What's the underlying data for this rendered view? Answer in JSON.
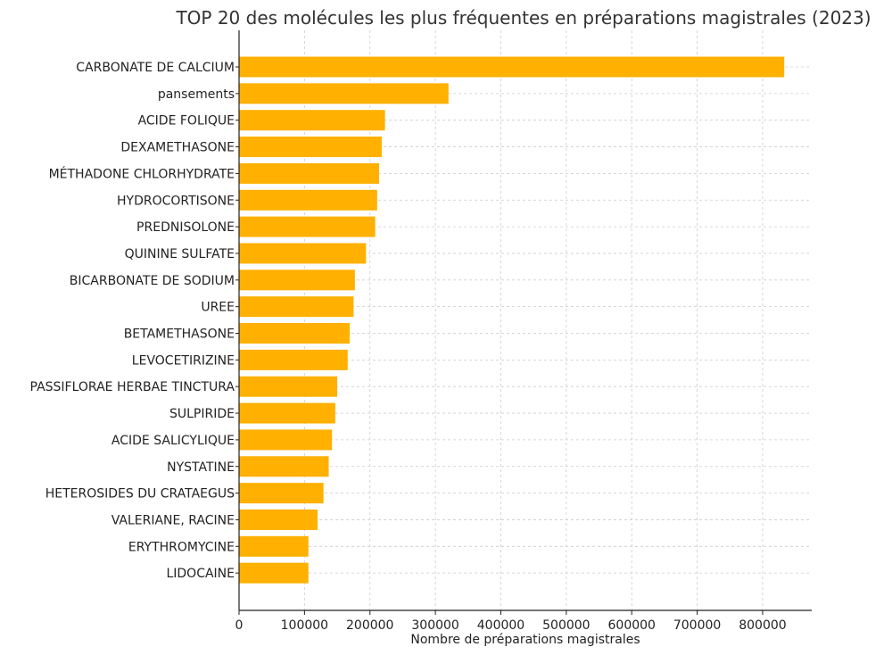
{
  "chart_data": {
    "type": "bar",
    "orientation": "horizontal",
    "title": "TOP 20 des molécules les plus fréquentes en préparations magistrales (2023)",
    "xlabel": "Nombre de préparations magistrales",
    "ylabel": "",
    "xlim": [
      0,
      875000
    ],
    "xticks": [
      0,
      100000,
      200000,
      300000,
      400000,
      500000,
      600000,
      700000,
      800000
    ],
    "grid": true,
    "bar_color": "#FFB000",
    "categories": [
      "CARBONATE DE CALCIUM",
      "pansements",
      "ACIDE FOLIQUE",
      "DEXAMETHASONE",
      "MÉTHADONE CHLORHYDRATE",
      "HYDROCORTISONE",
      "PREDNISOLONE",
      "QUININE SULFATE",
      "BICARBONATE DE SODIUM",
      "UREE",
      "BETAMETHASONE",
      "LEVOCETIRIZINE",
      "PASSIFLORAE HERBAE TINCTURA",
      "SULPIRIDE",
      "ACIDE SALICYLIQUE",
      "NYSTATINE",
      "HETEROSIDES DU CRATAEGUS",
      "VALERIANE, RACINE",
      "ERYTHROMYCINE",
      "LIDOCAINE"
    ],
    "values": [
      833000,
      320000,
      223000,
      218000,
      214000,
      211000,
      208000,
      194000,
      177000,
      175000,
      169000,
      166000,
      150000,
      147000,
      142000,
      137000,
      129000,
      120000,
      106000,
      106000
    ]
  }
}
